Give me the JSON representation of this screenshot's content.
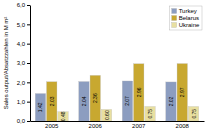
{
  "chart_data": {
    "type": "bar",
    "ylabel": "Sales output/Absatzzahlen in M m²",
    "categories": [
      "2005",
      "2006",
      "2007",
      "2008"
    ],
    "series": [
      {
        "name": "Turkey",
        "color": "#8C9DC0",
        "values": [
          1.42,
          2.04,
          2.07,
          2.02
        ],
        "value_labels": [
          "1.42",
          "2.04",
          "2.07",
          "2.02"
        ]
      },
      {
        "name": "Belarus",
        "color": "#C8A830",
        "values": [
          2.03,
          2.36,
          2.96,
          2.97
        ],
        "value_labels": [
          "2.03",
          "2.36",
          "2.96",
          "2.97"
        ]
      },
      {
        "name": "Ukraine",
        "color": "#E8DFA0",
        "values": [
          0.48,
          0.6,
          0.75,
          0.75
        ],
        "value_labels": [
          "0.48",
          "0.60",
          "0.75",
          "0.75"
        ]
      }
    ],
    "ylim": [
      0.0,
      6.0
    ],
    "yticks": [
      {
        "value": 0.0,
        "label": "0,0"
      },
      {
        "value": 1.0,
        "label": "1,0"
      },
      {
        "value": 2.0,
        "label": "2,0"
      },
      {
        "value": 3.0,
        "label": "3,0"
      },
      {
        "value": 4.0,
        "label": "4,0"
      },
      {
        "value": 5.0,
        "label": "5,0"
      },
      {
        "value": 6.0,
        "label": "6,0"
      }
    ],
    "data_labels": true,
    "legend": "upper right",
    "grid": false
  }
}
